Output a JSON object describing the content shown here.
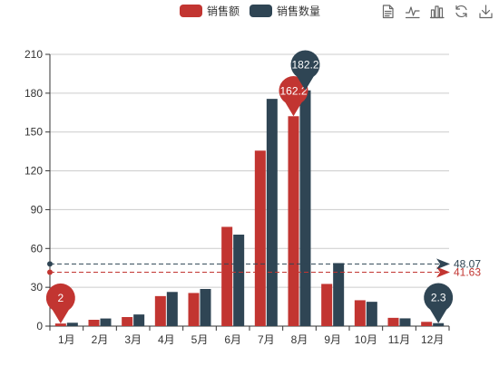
{
  "legend": [
    {
      "label": "销售额",
      "color": "#c23531"
    },
    {
      "label": "销售数量",
      "color": "#2f4554"
    }
  ],
  "toolbox": [
    {
      "name": "data-view-icon"
    },
    {
      "name": "line-chart-icon"
    },
    {
      "name": "bar-chart-icon"
    },
    {
      "name": "restore-icon"
    },
    {
      "name": "save-image-icon"
    }
  ],
  "chart_data": {
    "type": "bar",
    "categories": [
      "1月",
      "2月",
      "3月",
      "4月",
      "5月",
      "6月",
      "7月",
      "8月",
      "9月",
      "10月",
      "11月",
      "12月"
    ],
    "series": [
      {
        "name": "销售额",
        "color": "#c23531",
        "values": [
          2.0,
          4.9,
          7.0,
          23.2,
          25.6,
          76.7,
          135.6,
          162.2,
          32.6,
          20.0,
          6.4,
          3.3
        ],
        "mark_points": [
          {
            "label": "162.2",
            "index": 7,
            "kind": "max"
          },
          {
            "label": "2",
            "index": 0,
            "kind": "min"
          }
        ],
        "mark_line": {
          "kind": "average",
          "value": 41.63,
          "label": "41.63"
        }
      },
      {
        "name": "销售数量",
        "color": "#2f4554",
        "values": [
          2.6,
          5.9,
          9.0,
          26.4,
          28.7,
          70.7,
          175.6,
          182.2,
          48.7,
          18.8,
          6.0,
          2.3
        ],
        "mark_points": [
          {
            "label": "182.2",
            "index": 7,
            "kind": "max"
          },
          {
            "label": "2.3",
            "index": 11,
            "kind": "min"
          }
        ],
        "mark_line": {
          "kind": "average",
          "value": 48.07,
          "label": "48.07"
        }
      }
    ],
    "yticks": [
      "0",
      "30",
      "60",
      "90",
      "120",
      "150",
      "180",
      "210"
    ],
    "ylim": [
      0,
      210
    ],
    "grid": true,
    "legend_position": "top-center"
  }
}
